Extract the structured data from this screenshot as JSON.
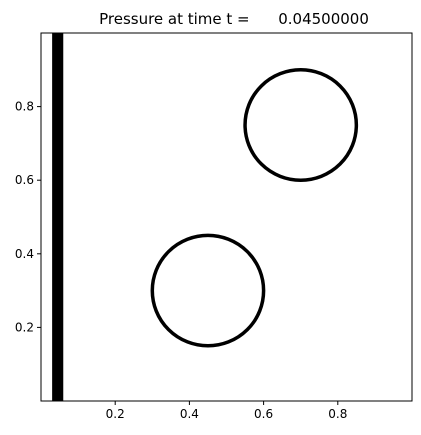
{
  "chart_data": {
    "type": "scatter",
    "title": "Pressure at time t =      0.04500000",
    "xlabel": "",
    "ylabel": "",
    "xlim": [
      0.0,
      1.0
    ],
    "ylim": [
      0.0,
      1.0
    ],
    "x_ticks": [
      0.2,
      0.4,
      0.6,
      0.8
    ],
    "x_tick_labels": [
      "0.2",
      "0.4",
      "0.6",
      "0.8"
    ],
    "y_ticks": [
      0.2,
      0.4,
      0.6,
      0.8
    ],
    "y_tick_labels": [
      "0.2",
      "0.4",
      "0.6",
      "0.8"
    ],
    "grid": false,
    "shapes": [
      {
        "kind": "band",
        "x_from": 0.03,
        "x_to": 0.06,
        "y_from": 0.0,
        "y_to": 1.0,
        "color": "#000000"
      },
      {
        "kind": "circle",
        "center": [
          0.45,
          0.3
        ],
        "radius": 0.15,
        "color": "#000000"
      },
      {
        "kind": "circle",
        "center": [
          0.7,
          0.75
        ],
        "radius": 0.15,
        "color": "#000000"
      }
    ]
  }
}
